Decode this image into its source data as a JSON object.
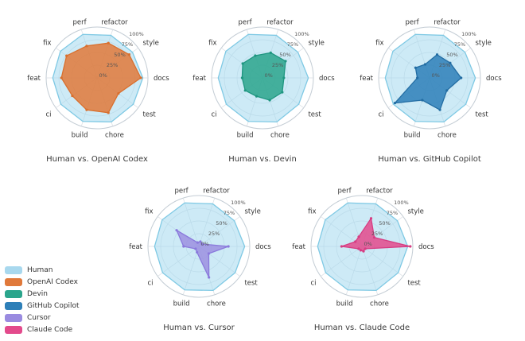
{
  "page": {
    "background": "#ffffff"
  },
  "legend": {
    "items": [
      {
        "label": "Human",
        "color": "#a8d8ee"
      },
      {
        "label": "OpenAI Codex",
        "color": "#e0793a"
      },
      {
        "label": "Devin",
        "color": "#2aa58c"
      },
      {
        "label": "GitHub Copilot",
        "color": "#2d7fb8"
      },
      {
        "label": "Cursor",
        "color": "#9a8be0"
      },
      {
        "label": "Claude Code",
        "color": "#e34a8c"
      }
    ]
  },
  "chart_data": {
    "type": "radar",
    "categories": [
      "docs",
      "style",
      "refactor",
      "perf",
      "fix",
      "feat",
      "ci",
      "build",
      "chore",
      "test"
    ],
    "ticks": [
      {
        "label": "0%",
        "value": 0
      },
      {
        "label": "25%",
        "value": 25
      },
      {
        "label": "50%",
        "value": 50
      },
      {
        "label": "75%",
        "value": 75
      },
      {
        "label": "100%",
        "value": 100
      }
    ],
    "tick_angle_deg": 54,
    "rlim": [
      0,
      100
    ],
    "grid": {
      "ring_color": "#d7dde3",
      "outer_color": "#c3ccd4",
      "label_color": "#555555",
      "axis_label_color": "#333333"
    },
    "charts": [
      {
        "title": "Human vs. OpenAI Codex",
        "series": [
          {
            "name": "Human",
            "color": "#7fc9e4",
            "fill": "rgba(164,216,238,0.55)",
            "markers": false,
            "values": [
              90,
              86,
              88,
              90,
              89,
              87,
              88,
              90,
              91,
              88
            ]
          },
          {
            "name": "OpenAI Codex",
            "color": "#d96f2e",
            "fill": "rgba(224,121,58,0.85)",
            "markers": true,
            "values": [
              86,
              78,
              72,
              66,
              74,
              70,
              60,
              66,
              72,
              52
            ]
          }
        ]
      },
      {
        "title": "Human vs. Devin",
        "series": [
          {
            "name": "Human",
            "color": "#7fc9e4",
            "fill": "rgba(164,216,238,0.55)",
            "markers": false,
            "values": [
              90,
              86,
              88,
              90,
              89,
              87,
              88,
              90,
              91,
              88
            ]
          },
          {
            "name": "Devin",
            "color": "#1f9680",
            "fill": "rgba(42,165,140,0.85)",
            "markers": true,
            "values": [
              42,
              56,
              52,
              46,
              48,
              40,
              42,
              38,
              46,
              48
            ]
          }
        ]
      },
      {
        "title": "Human vs. GitHub Copilot",
        "series": [
          {
            "name": "Human",
            "color": "#7fc9e4",
            "fill": "rgba(164,216,238,0.55)",
            "markers": false,
            "values": [
              90,
              86,
              88,
              90,
              89,
              87,
              88,
              90,
              91,
              88
            ]
          },
          {
            "name": "GitHub Copilot",
            "color": "#236da3",
            "fill": "rgba(45,127,184,0.85)",
            "markers": true,
            "values": [
              62,
              50,
              48,
              28,
              34,
              24,
              84,
              46,
              66,
              42
            ]
          }
        ]
      },
      {
        "title": "Human vs. Cursor",
        "series": [
          {
            "name": "Human",
            "color": "#7fc9e4",
            "fill": "rgba(164,216,238,0.55)",
            "markers": false,
            "values": [
              90,
              86,
              88,
              90,
              89,
              87,
              88,
              90,
              91,
              88
            ]
          },
          {
            "name": "Cursor",
            "color": "#8a79dc",
            "fill": "rgba(154,139,224,0.8)",
            "markers": true,
            "values": [
              58,
              8,
              10,
              8,
              54,
              30,
              8,
              12,
              64,
              24
            ]
          }
        ]
      },
      {
        "title": "Human vs. Claude Code",
        "series": [
          {
            "name": "Human",
            "color": "#7fc9e4",
            "fill": "rgba(164,216,238,0.55)",
            "markers": false,
            "values": [
              90,
              86,
              88,
              90,
              89,
              87,
              88,
              90,
              91,
              88
            ]
          },
          {
            "name": "Claude Code",
            "color": "#d63c82",
            "fill": "rgba(227,74,140,0.85)",
            "markers": true,
            "values": [
              95,
              30,
              58,
              20,
              16,
              40,
              8,
              8,
              10,
              8
            ]
          }
        ]
      }
    ]
  }
}
